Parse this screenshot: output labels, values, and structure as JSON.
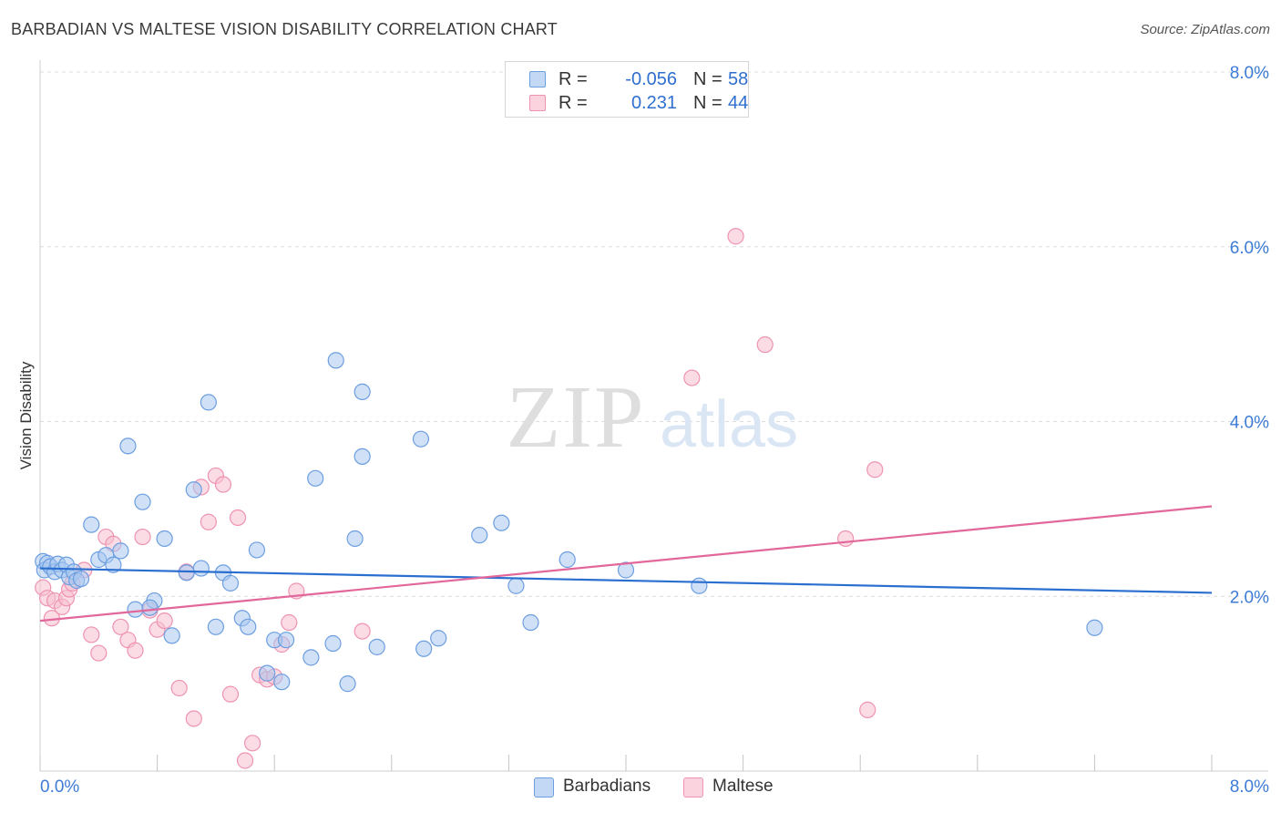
{
  "title": "BARBADIAN VS MALTESE VISION DISABILITY CORRELATION CHART",
  "source": "Source: ZipAtlas.com",
  "watermark": {
    "zip": "ZIP",
    "atlas": "atlas"
  },
  "legend": {
    "rows": [
      {
        "r_label": "R =",
        "r_value": "-0.056",
        "n_label": "N =",
        "n_value": "58"
      },
      {
        "r_label": "R =",
        "r_value": "0.231",
        "n_label": "N =",
        "n_value": "44"
      }
    ]
  },
  "bottom_legend": [
    "Barbadians",
    "Maltese"
  ],
  "colors": {
    "blue_fill": "#aac8f0",
    "blue_stroke": "#6c9ee0",
    "blue_line": "#2a6fd0",
    "pink_fill": "#f8bfd0",
    "pink_stroke": "#ee93b2",
    "pink_line": "#e2679a",
    "tick_label": "#3d7bd6",
    "grid": "#dcdcdc"
  },
  "chart_data": {
    "type": "scatter",
    "title": "BARBADIAN VS MALTESE VISION DISABILITY CORRELATION CHART",
    "xlabel": "",
    "ylabel": "Vision Disability",
    "xlim": [
      0,
      8.0
    ],
    "ylim": [
      0,
      8.0
    ],
    "x_tick_labels": [
      "0.0%",
      "8.0%"
    ],
    "y_ticks": [
      2.0,
      4.0,
      6.0,
      8.0
    ],
    "y_tick_labels": [
      "2.0%",
      "4.0%",
      "6.0%",
      "8.0%"
    ],
    "grid": "horizontal dashed",
    "legend_position": "top-center",
    "series": [
      {
        "name": "Barbadians",
        "r": -0.056,
        "n": 58,
        "trend": [
          [
            0,
            2.32
          ],
          [
            8.0,
            2.04
          ]
        ],
        "points": [
          [
            0.02,
            2.4
          ],
          [
            0.03,
            2.3
          ],
          [
            0.05,
            2.38
          ],
          [
            0.07,
            2.34
          ],
          [
            0.1,
            2.28
          ],
          [
            0.12,
            2.37
          ],
          [
            0.15,
            2.3
          ],
          [
            0.18,
            2.36
          ],
          [
            0.2,
            2.22
          ],
          [
            0.23,
            2.28
          ],
          [
            0.25,
            2.18
          ],
          [
            0.28,
            2.2
          ],
          [
            0.35,
            2.82
          ],
          [
            0.4,
            2.42
          ],
          [
            0.45,
            2.47
          ],
          [
            0.5,
            2.36
          ],
          [
            0.55,
            2.52
          ],
          [
            0.6,
            3.72
          ],
          [
            0.65,
            1.85
          ],
          [
            0.7,
            3.08
          ],
          [
            0.78,
            1.95
          ],
          [
            0.85,
            2.66
          ],
          [
            0.9,
            1.55
          ],
          [
            1.0,
            2.27
          ],
          [
            1.05,
            3.22
          ],
          [
            1.1,
            2.32
          ],
          [
            1.15,
            4.22
          ],
          [
            1.2,
            1.65
          ],
          [
            1.25,
            2.27
          ],
          [
            1.3,
            2.15
          ],
          [
            1.38,
            1.75
          ],
          [
            1.42,
            1.65
          ],
          [
            1.48,
            2.53
          ],
          [
            1.55,
            1.12
          ],
          [
            1.6,
            1.5
          ],
          [
            1.65,
            1.02
          ],
          [
            1.85,
            1.3
          ],
          [
            1.88,
            3.35
          ],
          [
            2.0,
            1.46
          ],
          [
            2.02,
            4.7
          ],
          [
            2.1,
            1.0
          ],
          [
            2.15,
            2.66
          ],
          [
            2.2,
            3.6
          ],
          [
            2.2,
            4.34
          ],
          [
            2.3,
            1.42
          ],
          [
            2.6,
            3.8
          ],
          [
            2.62,
            1.4
          ],
          [
            2.72,
            1.52
          ],
          [
            3.0,
            2.7
          ],
          [
            3.15,
            2.84
          ],
          [
            3.25,
            2.12
          ],
          [
            3.35,
            1.7
          ],
          [
            3.6,
            2.42
          ],
          [
            4.0,
            2.3
          ],
          [
            4.5,
            2.12
          ],
          [
            7.2,
            1.64
          ],
          [
            1.68,
            1.5
          ],
          [
            0.75,
            1.87
          ]
        ]
      },
      {
        "name": "Maltese",
        "r": 0.231,
        "n": 44,
        "trend": [
          [
            0,
            1.72
          ],
          [
            8.0,
            3.03
          ]
        ],
        "points": [
          [
            0.02,
            2.1
          ],
          [
            0.05,
            1.98
          ],
          [
            0.08,
            1.75
          ],
          [
            0.1,
            1.95
          ],
          [
            0.15,
            1.88
          ],
          [
            0.18,
            1.98
          ],
          [
            0.2,
            2.08
          ],
          [
            0.22,
            2.15
          ],
          [
            0.3,
            2.3
          ],
          [
            0.35,
            1.56
          ],
          [
            0.4,
            1.35
          ],
          [
            0.45,
            2.68
          ],
          [
            0.5,
            2.6
          ],
          [
            0.55,
            1.65
          ],
          [
            0.6,
            1.5
          ],
          [
            0.65,
            1.38
          ],
          [
            0.7,
            2.68
          ],
          [
            0.75,
            1.84
          ],
          [
            0.8,
            1.62
          ],
          [
            0.85,
            1.72
          ],
          [
            0.95,
            0.95
          ],
          [
            1.0,
            2.28
          ],
          [
            1.05,
            0.6
          ],
          [
            1.1,
            3.25
          ],
          [
            1.15,
            2.85
          ],
          [
            1.2,
            3.38
          ],
          [
            1.25,
            3.28
          ],
          [
            1.3,
            0.88
          ],
          [
            1.35,
            2.9
          ],
          [
            1.4,
            0.12
          ],
          [
            1.45,
            0.32
          ],
          [
            1.5,
            1.1
          ],
          [
            1.55,
            1.05
          ],
          [
            1.6,
            1.08
          ],
          [
            1.65,
            1.45
          ],
          [
            1.7,
            1.7
          ],
          [
            1.75,
            2.06
          ],
          [
            2.2,
            1.6
          ],
          [
            4.45,
            4.5
          ],
          [
            4.75,
            6.12
          ],
          [
            4.95,
            4.88
          ],
          [
            5.5,
            2.66
          ],
          [
            5.7,
            3.45
          ],
          [
            5.65,
            0.7
          ]
        ]
      }
    ]
  }
}
